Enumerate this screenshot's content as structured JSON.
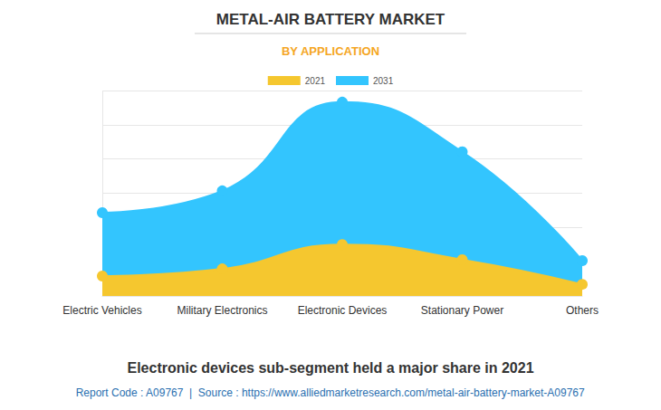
{
  "chart_data": {
    "type": "area",
    "title": "METAL-AIR BATTERY MARKET",
    "subtitle": "BY APPLICATION",
    "categories": [
      "Electric Vehicles",
      "Military Electronics",
      "Electronic Devices",
      "Stationary Power",
      "Others"
    ],
    "series": [
      {
        "name": "2021",
        "color": "#f5c72f",
        "values": [
          0.58,
          0.79,
          1.5,
          1.06,
          0.34
        ]
      },
      {
        "name": "2031",
        "color": "#33c5fe",
        "values": [
          2.43,
          3.07,
          5.66,
          4.21,
          1.03
        ]
      }
    ],
    "ylim": [
      0,
      6
    ],
    "yticks": [
      0,
      1,
      2,
      3,
      4,
      5,
      6
    ],
    "grid": true,
    "legend": "top",
    "marker": "circle",
    "tick_labels": "x",
    "annotations": [
      "Electronic devices sub-segment held a major share in 2021",
      "Report Code : A09767  |  Source : https://www.alliedmarketresearch.com/metal-air-battery-market-A09767"
    ]
  }
}
